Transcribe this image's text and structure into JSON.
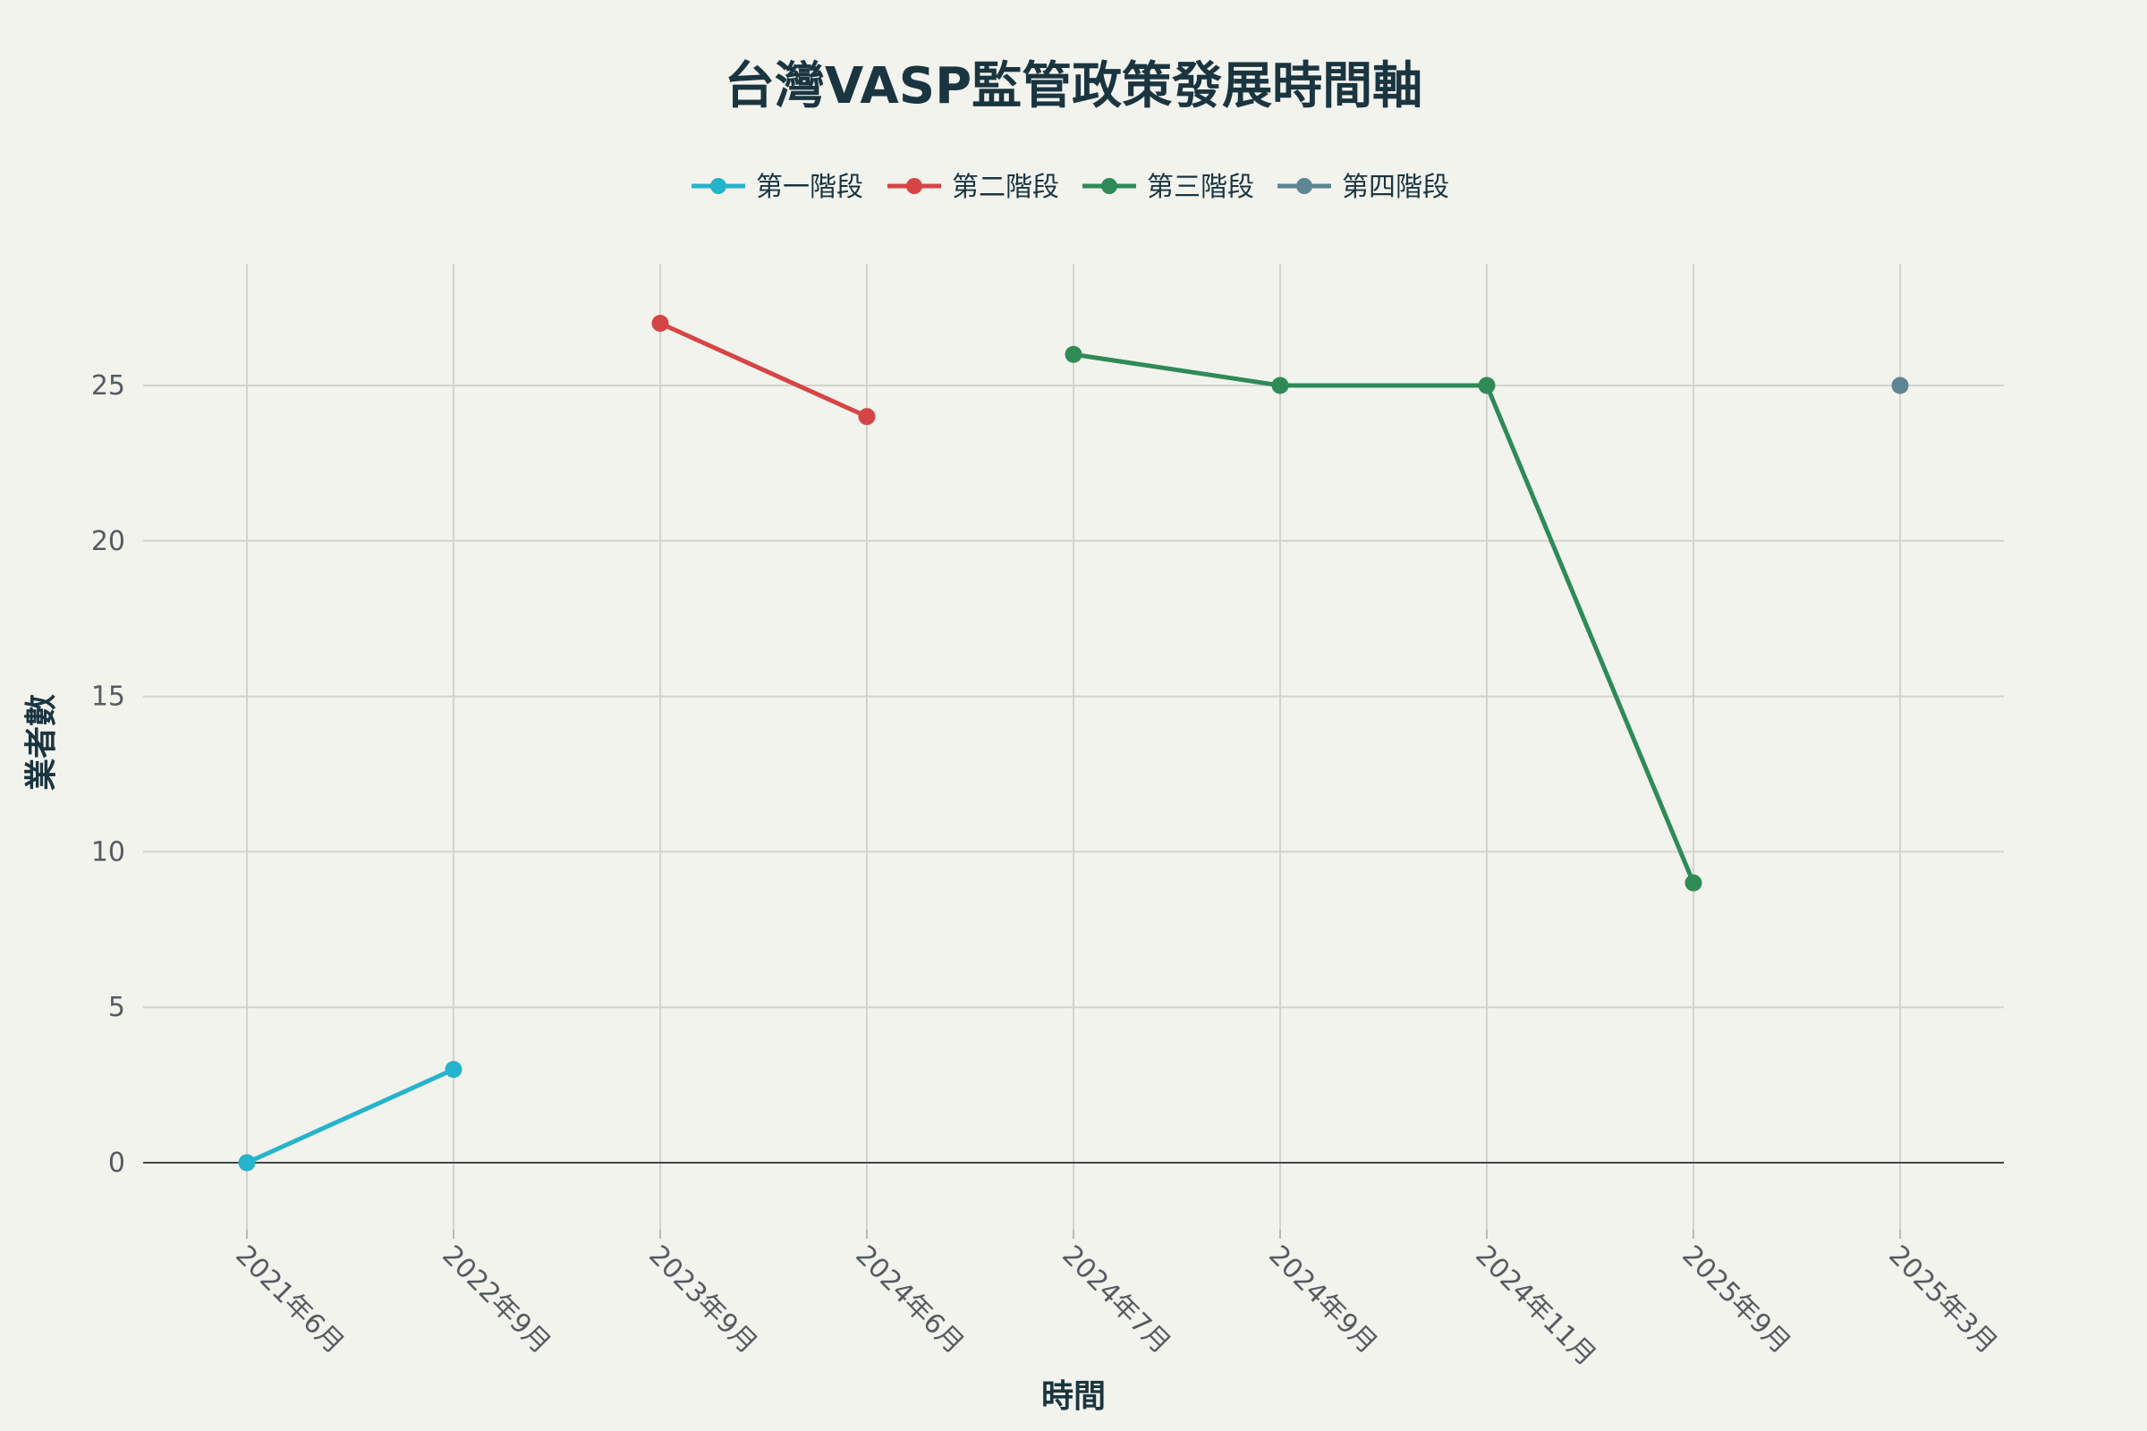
{
  "chart_data": {
    "type": "line",
    "title": "台灣VASP監管政策發展時間軸",
    "xlabel": "時間",
    "ylabel": "業者數",
    "categories": [
      "2021年6月",
      "2022年9月",
      "2023年9月",
      "2024年6月",
      "2024年7月",
      "2024年9月",
      "2024年11月",
      "2025年9月",
      "2025年3月"
    ],
    "ylim": [
      -2,
      29
    ],
    "yticks": [
      0,
      5,
      10,
      15,
      20,
      25
    ],
    "grid": true,
    "legend_position": "top-center",
    "series": [
      {
        "name": "第一階段",
        "color": "#26b3cc",
        "x": [
          "2021年6月",
          "2022年9月"
        ],
        "values": [
          0,
          3
        ]
      },
      {
        "name": "第二階段",
        "color": "#d64545",
        "x": [
          "2023年9月",
          "2024年6月"
        ],
        "values": [
          27,
          24
        ]
      },
      {
        "name": "第三階段",
        "color": "#2e8b57",
        "x": [
          "2024年7月",
          "2024年9月",
          "2024年11月",
          "2025年9月"
        ],
        "values": [
          26,
          25,
          25,
          9
        ]
      },
      {
        "name": "第四階段",
        "color": "#5d8592",
        "x": [
          "2025年3月"
        ],
        "values": [
          25
        ]
      }
    ]
  }
}
